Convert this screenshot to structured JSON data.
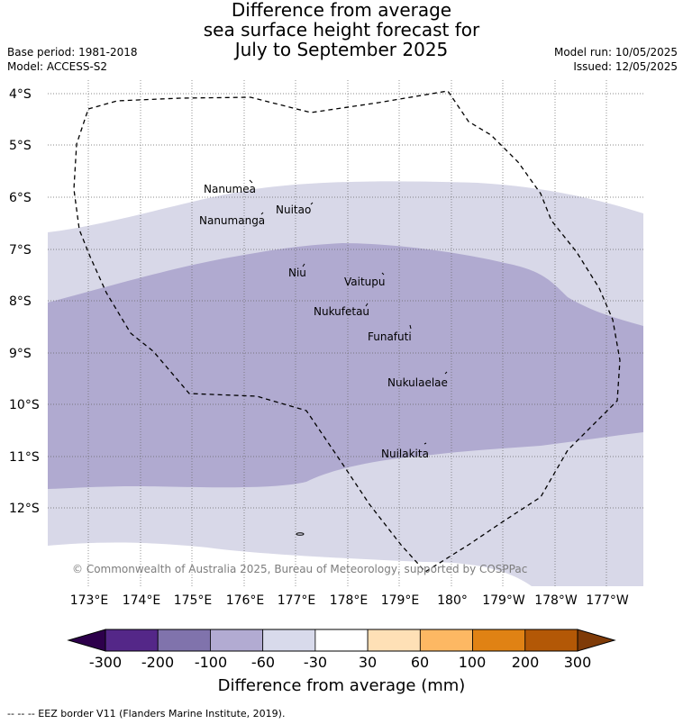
{
  "title": {
    "line1": "Difference from average",
    "line2": "sea surface height forecast for",
    "line3": "July to September 2025"
  },
  "meta_left": {
    "base_period": "Base period: 1981-2018",
    "model": "Model: ACCESS-S2"
  },
  "meta_right": {
    "model_run": "Model run: 10/05/2025",
    "issued": "Issued: 12/05/2025"
  },
  "map": {
    "lat_labels": [
      "4°S",
      "5°S",
      "6°S",
      "7°S",
      "8°S",
      "9°S",
      "10°S",
      "11°S",
      "12°S"
    ],
    "lon_labels": [
      "173°E",
      "174°E",
      "175°E",
      "176°E",
      "177°E",
      "178°E",
      "179°E",
      "180°",
      "179°W",
      "178°W",
      "177°W"
    ],
    "places": [
      "Nanumea",
      "Nuitao",
      "Nanumanga",
      "Niu",
      "Vaitupu",
      "Nukufetau",
      "Funafuti",
      "Nukulaelae",
      "Nuilakita"
    ],
    "copyright": "© Commonwealth of Australia 2025, Bureau of Meteorology, supported by COSPPac",
    "eez_style": "dashed",
    "gridlines": true
  },
  "colors": {
    "band_-60_-30": "#d8d8e8",
    "band_-100_-60": "#b0aad0",
    "ocean_background": "#ffffff"
  },
  "colorbar": {
    "ticks": [
      "-300",
      "-200",
      "-100",
      "-60",
      "-30",
      "30",
      "60",
      "100",
      "200",
      "300"
    ],
    "colors": [
      "#542788",
      "#8073ac",
      "#b2abd2",
      "#d8daeb",
      "#ffffff",
      "#fee0b6",
      "#fdb863",
      "#e08214",
      "#b35806"
    ],
    "under_color": "#2d004b",
    "over_color": "#7f3b08",
    "label": "Difference from average (mm)"
  },
  "footer": "-- -- -- EEZ border V11 (Flanders Marine Institute, 2019)."
}
